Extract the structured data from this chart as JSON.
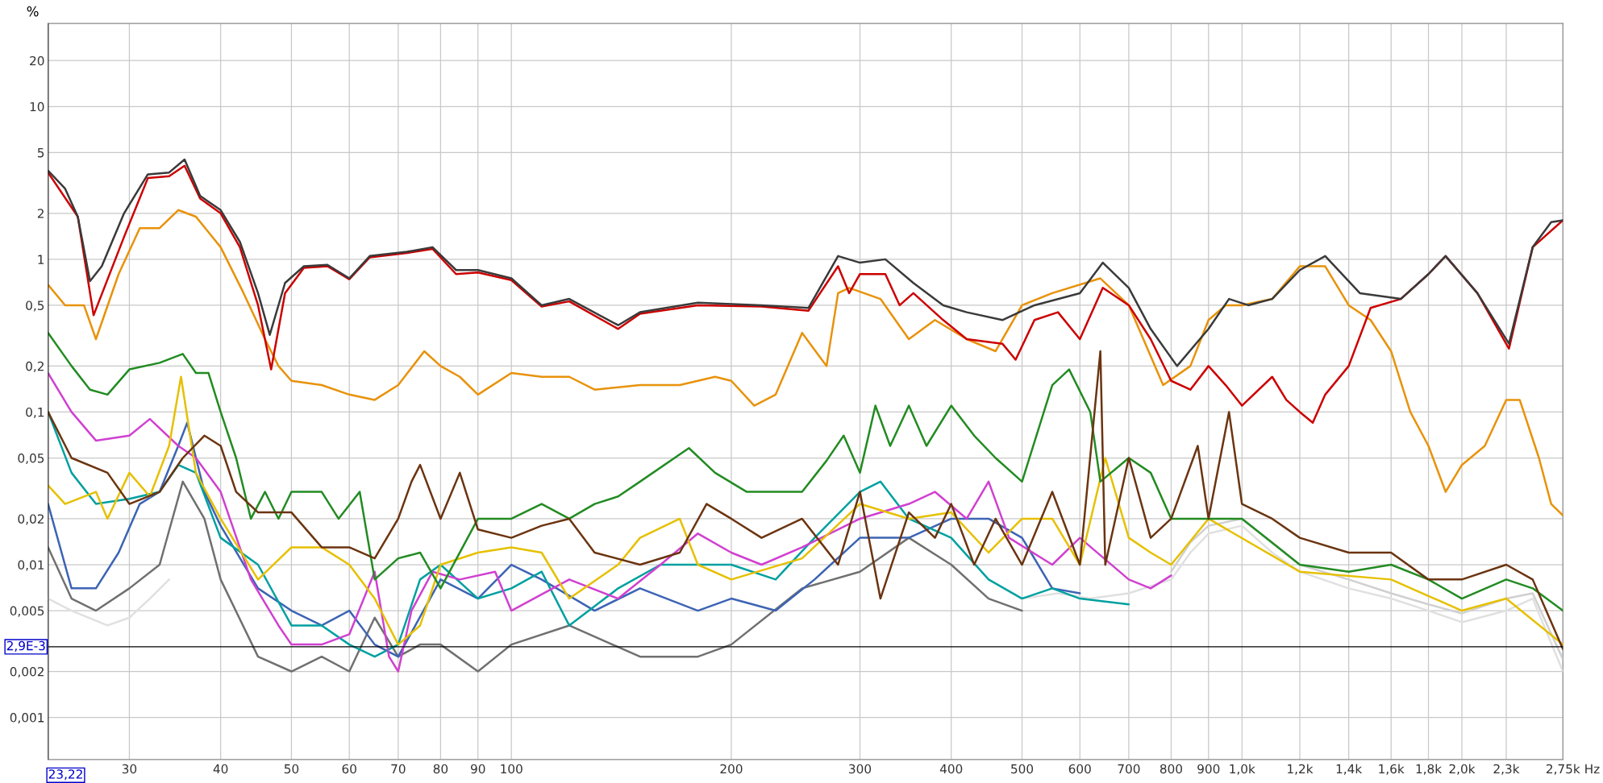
{
  "chart_data": {
    "type": "line",
    "ylabel": "%",
    "log": "xy",
    "grid": true,
    "legend": false,
    "marker": "none",
    "line_style": "solid",
    "xlim": [
      23.22,
      2750
    ],
    "ylim": [
      0.00053,
      35
    ],
    "xticks": [
      30,
      40,
      50,
      60,
      70,
      80,
      90,
      100,
      200,
      300,
      400,
      500,
      600,
      700,
      800,
      900,
      {
        "value": 1000,
        "label": "1,0k"
      },
      {
        "value": 1200,
        "label": "1,2k"
      },
      {
        "value": 1400,
        "label": "1,4k"
      },
      {
        "value": 1600,
        "label": "1,6k"
      },
      {
        "value": 1800,
        "label": "1,8k"
      },
      {
        "value": 2000,
        "label": "2,0k"
      },
      {
        "value": 2300,
        "label": "2,3k"
      },
      {
        "value": 2750,
        "label": "2,75k"
      }
    ],
    "xlabel": "Hz",
    "yticks": [
      20,
      10,
      5,
      2,
      1,
      {
        "value": 0.5,
        "label": "0,5"
      },
      {
        "value": 0.2,
        "label": "0,2"
      },
      {
        "value": 0.1,
        "label": "0,1"
      },
      {
        "value": 0.05,
        "label": "0,05"
      },
      {
        "value": 0.02,
        "label": "0,02"
      },
      {
        "value": 0.01,
        "label": "0,01"
      },
      {
        "value": 0.005,
        "label": "0,005"
      },
      {
        "value": 0.002,
        "label": "0,002"
      },
      {
        "value": 0.001,
        "label": "0,001"
      }
    ],
    "ref_lines": [
      {
        "axis": "x",
        "value": 23.22,
        "label": "23,22",
        "color": "#000000"
      },
      {
        "axis": "y",
        "value": 0.0029,
        "label": "2,9E-3",
        "color": "#000000"
      }
    ],
    "series": [
      {
        "color": "#e0e0e0",
        "x": [
          23.22,
          25,
          28,
          30,
          32,
          34,
          null,
          500,
          560,
          620,
          700,
          800,
          850,
          900,
          1000,
          1100,
          1200,
          1400,
          1600,
          1800,
          2000,
          2300,
          2500,
          2750
        ],
        "values": [
          0.006,
          0.005,
          0.004,
          0.0045,
          0.006,
          0.008,
          null,
          0.006,
          0.0065,
          0.006,
          0.0065,
          0.008,
          0.012,
          0.016,
          0.018,
          0.012,
          0.009,
          0.007,
          0.006,
          0.005,
          0.0042,
          0.005,
          0.006,
          0.002
        ]
      },
      {
        "color": "#d0d0d0",
        "x": [
          800,
          850,
          900,
          1000,
          1100,
          1200,
          1400,
          1600,
          1800,
          2000,
          2300,
          2500,
          2750
        ],
        "values": [
          0.009,
          0.014,
          0.018,
          0.02,
          0.014,
          0.01,
          0.008,
          0.0065,
          0.0055,
          0.0048,
          0.006,
          0.0065,
          0.0024
        ]
      },
      {
        "color": "#707070",
        "x": [
          23.22,
          25,
          27,
          30,
          33,
          35.5,
          38,
          40,
          45,
          50,
          55,
          60,
          65,
          70,
          75,
          80,
          90,
          100,
          120,
          150,
          180,
          200,
          250,
          300,
          350,
          400,
          450,
          500
        ],
        "values": [
          0.013,
          0.006,
          0.005,
          0.007,
          0.01,
          0.035,
          0.02,
          0.008,
          0.0025,
          0.002,
          0.0025,
          0.002,
          0.0045,
          0.0025,
          0.003,
          0.003,
          0.002,
          0.003,
          0.004,
          0.0025,
          0.0025,
          0.003,
          0.007,
          0.009,
          0.015,
          0.01,
          0.006,
          0.005
        ]
      },
      {
        "color": "#3c64b4",
        "x": [
          23.22,
          25,
          27,
          29,
          31,
          33,
          35,
          36,
          38,
          40,
          45,
          50,
          55,
          60,
          65,
          70,
          80,
          90,
          100,
          110,
          130,
          150,
          180,
          200,
          230,
          260,
          300,
          350,
          400,
          450,
          500,
          550,
          600
        ],
        "values": [
          0.025,
          0.007,
          0.007,
          0.012,
          0.025,
          0.03,
          0.06,
          0.085,
          0.03,
          0.018,
          0.007,
          0.005,
          0.004,
          0.005,
          0.003,
          0.0025,
          0.008,
          0.006,
          0.01,
          0.008,
          0.005,
          0.007,
          0.005,
          0.006,
          0.005,
          0.008,
          0.015,
          0.015,
          0.02,
          0.02,
          0.015,
          0.007,
          0.0065
        ]
      },
      {
        "color": "#00a0a0",
        "x": [
          23.22,
          25,
          27,
          30,
          33,
          35,
          37,
          40,
          45,
          50,
          55,
          60,
          65,
          70,
          75,
          80,
          90,
          100,
          110,
          120,
          140,
          160,
          200,
          230,
          260,
          300,
          320,
          350,
          400,
          450,
          500,
          550,
          600,
          700
        ],
        "values": [
          0.1,
          0.04,
          0.025,
          0.027,
          0.03,
          0.045,
          0.04,
          0.015,
          0.01,
          0.004,
          0.004,
          0.003,
          0.0025,
          0.003,
          0.008,
          0.01,
          0.006,
          0.007,
          0.009,
          0.004,
          0.007,
          0.01,
          0.01,
          0.008,
          0.015,
          0.03,
          0.035,
          0.02,
          0.015,
          0.008,
          0.006,
          0.007,
          0.006,
          0.0055
        ]
      },
      {
        "color": "#d040d0",
        "x": [
          23.22,
          25,
          27,
          30,
          32,
          35,
          37,
          40,
          44,
          48,
          50,
          55,
          60,
          65,
          68,
          70,
          73,
          78,
          85,
          95,
          100,
          120,
          140,
          160,
          180,
          200,
          220,
          250,
          300,
          350,
          380,
          420,
          450,
          480,
          550,
          600,
          700,
          750,
          800
        ],
        "values": [
          0.18,
          0.1,
          0.065,
          0.07,
          0.09,
          0.06,
          0.05,
          0.03,
          0.008,
          0.004,
          0.003,
          0.003,
          0.0035,
          0.009,
          0.0025,
          0.002,
          0.005,
          0.009,
          0.008,
          0.009,
          0.005,
          0.008,
          0.006,
          0.01,
          0.016,
          0.012,
          0.01,
          0.013,
          0.02,
          0.025,
          0.03,
          0.02,
          0.035,
          0.015,
          0.01,
          0.015,
          0.008,
          0.007,
          0.0085
        ]
      },
      {
        "color": "#e6c000",
        "x": [
          23.22,
          24.5,
          27,
          28,
          30,
          32,
          34,
          35.3,
          37,
          40,
          45,
          50,
          55,
          60,
          65,
          70,
          75,
          80,
          90,
          100,
          110,
          120,
          140,
          150,
          170,
          180,
          200,
          250,
          300,
          350,
          400,
          450,
          500,
          550,
          600,
          650,
          700,
          750,
          800,
          900,
          1200,
          1600,
          2000,
          2300,
          2750
        ],
        "values": [
          0.033,
          0.025,
          0.03,
          0.02,
          0.04,
          0.028,
          0.06,
          0.17,
          0.04,
          0.02,
          0.008,
          0.013,
          0.013,
          0.01,
          0.006,
          0.003,
          0.004,
          0.01,
          0.012,
          0.013,
          0.012,
          0.006,
          0.01,
          0.015,
          0.02,
          0.01,
          0.008,
          0.011,
          0.025,
          0.02,
          0.022,
          0.012,
          0.02,
          0.02,
          0.01,
          0.05,
          0.015,
          0.012,
          0.01,
          0.02,
          0.009,
          0.008,
          0.005,
          0.006,
          0.003
        ]
      },
      {
        "color": "#228b22",
        "x": [
          23.22,
          25,
          26.5,
          28,
          30,
          33,
          35.5,
          37,
          38.5,
          40,
          42,
          44,
          46,
          48,
          50,
          55,
          58,
          62,
          65,
          70,
          75,
          80,
          90,
          100,
          110,
          120,
          130,
          140,
          150,
          175,
          190,
          210,
          250,
          270,
          285,
          300,
          315,
          330,
          350,
          370,
          400,
          430,
          460,
          500,
          550,
          580,
          620,
          640,
          700,
          750,
          800,
          900,
          1000,
          1200,
          1400,
          1600,
          1800,
          2000,
          2300,
          2500,
          2750
        ],
        "values": [
          0.33,
          0.2,
          0.14,
          0.13,
          0.19,
          0.21,
          0.24,
          0.18,
          0.18,
          0.1,
          0.05,
          0.02,
          0.03,
          0.02,
          0.03,
          0.03,
          0.02,
          0.03,
          0.008,
          0.011,
          0.012,
          0.007,
          0.02,
          0.02,
          0.025,
          0.02,
          0.025,
          0.028,
          0.035,
          0.058,
          0.04,
          0.03,
          0.03,
          0.048,
          0.07,
          0.04,
          0.11,
          0.06,
          0.11,
          0.06,
          0.11,
          0.07,
          0.05,
          0.035,
          0.15,
          0.19,
          0.1,
          0.035,
          0.05,
          0.04,
          0.02,
          0.02,
          0.02,
          0.01,
          0.009,
          0.01,
          0.008,
          0.006,
          0.008,
          0.007,
          0.005
        ]
      },
      {
        "color": "#6b3410",
        "x": [
          23.22,
          25,
          28,
          30,
          33,
          35.5,
          38,
          40,
          42,
          45,
          50,
          55,
          60,
          65,
          70,
          73,
          75,
          80,
          85,
          90,
          100,
          110,
          120,
          130,
          150,
          170,
          185,
          200,
          220,
          250,
          280,
          300,
          320,
          350,
          380,
          400,
          430,
          460,
          500,
          550,
          600,
          640,
          650,
          700,
          750,
          800,
          870,
          900,
          960,
          1000,
          1100,
          1200,
          1400,
          1600,
          1800,
          2000,
          2300,
          2500,
          2750
        ],
        "values": [
          0.1,
          0.05,
          0.04,
          0.025,
          0.03,
          0.05,
          0.07,
          0.06,
          0.03,
          0.022,
          0.022,
          0.013,
          0.013,
          0.011,
          0.02,
          0.035,
          0.045,
          0.02,
          0.04,
          0.017,
          0.015,
          0.018,
          0.02,
          0.012,
          0.01,
          0.012,
          0.025,
          0.02,
          0.015,
          0.02,
          0.01,
          0.03,
          0.006,
          0.022,
          0.015,
          0.025,
          0.01,
          0.02,
          0.01,
          0.03,
          0.01,
          0.25,
          0.01,
          0.05,
          0.015,
          0.02,
          0.06,
          0.02,
          0.1,
          0.025,
          0.02,
          0.015,
          0.012,
          0.012,
          0.008,
          0.008,
          0.01,
          0.008,
          0.0028
        ]
      },
      {
        "color": "#e8920a",
        "x": [
          23.22,
          24.5,
          26,
          27,
          29,
          31,
          33,
          35,
          37,
          40,
          43,
          46,
          48,
          50,
          55,
          60,
          65,
          70,
          76,
          80,
          85,
          90,
          100,
          110,
          120,
          130,
          150,
          170,
          190,
          200,
          215,
          230,
          250,
          270,
          280,
          290,
          320,
          350,
          380,
          420,
          460,
          500,
          550,
          640,
          700,
          780,
          850,
          900,
          950,
          1000,
          1100,
          1200,
          1300,
          1400,
          1500,
          1600,
          1700,
          1800,
          1900,
          2000,
          2150,
          2300,
          2400,
          2550,
          2650,
          2750
        ],
        "values": [
          0.68,
          0.5,
          0.5,
          0.3,
          0.8,
          1.6,
          1.6,
          2.1,
          1.9,
          1.2,
          0.6,
          0.3,
          0.2,
          0.16,
          0.15,
          0.13,
          0.12,
          0.15,
          0.25,
          0.2,
          0.17,
          0.13,
          0.18,
          0.17,
          0.17,
          0.14,
          0.15,
          0.15,
          0.17,
          0.16,
          0.11,
          0.13,
          0.33,
          0.2,
          0.6,
          0.65,
          0.55,
          0.3,
          0.4,
          0.3,
          0.25,
          0.5,
          0.6,
          0.75,
          0.5,
          0.15,
          0.2,
          0.4,
          0.5,
          0.5,
          0.55,
          0.9,
          0.9,
          0.5,
          0.4,
          0.25,
          0.1,
          0.06,
          0.03,
          0.045,
          0.06,
          0.12,
          0.12,
          0.05,
          0.025,
          0.021
        ]
      },
      {
        "color": "#cc0000",
        "x": [
          23.22,
          25.5,
          26.8,
          29.5,
          31.8,
          34,
          35.7,
          37.5,
          40,
          42.5,
          45,
          46.9,
          49,
          52,
          56,
          60,
          64,
          72,
          78,
          84,
          90,
          100,
          110,
          120,
          140,
          150,
          180,
          220,
          255,
          280,
          290,
          300,
          325,
          340,
          355,
          390,
          420,
          470,
          490,
          520,
          560,
          600,
          645,
          700,
          750,
          800,
          850,
          900,
          950,
          1000,
          1100,
          1150,
          1200,
          1250,
          1300,
          1400,
          1500,
          1650,
          1800,
          1900,
          2100,
          2320,
          2500,
          2750
        ],
        "values": [
          3.7,
          1.9,
          0.43,
          1.4,
          3.4,
          3.5,
          4.1,
          2.5,
          2.0,
          1.2,
          0.5,
          0.19,
          0.6,
          0.88,
          0.9,
          0.74,
          1.03,
          1.1,
          1.17,
          0.8,
          0.82,
          0.73,
          0.49,
          0.53,
          0.35,
          0.44,
          0.5,
          0.49,
          0.46,
          0.9,
          0.6,
          0.8,
          0.8,
          0.5,
          0.6,
          0.4,
          0.3,
          0.28,
          0.22,
          0.4,
          0.45,
          0.3,
          0.65,
          0.5,
          0.3,
          0.16,
          0.14,
          0.2,
          0.15,
          0.11,
          0.17,
          0.12,
          0.1,
          0.085,
          0.13,
          0.2,
          0.48,
          0.55,
          0.8,
          1.05,
          0.6,
          0.26,
          1.2,
          1.8
        ]
      },
      {
        "color": "#3a3a3a",
        "x": [
          23.22,
          24.5,
          25.5,
          26.5,
          27.5,
          29.5,
          31.8,
          34,
          35.7,
          37.5,
          40,
          42.5,
          45,
          46.7,
          49,
          52,
          56,
          60,
          64,
          72,
          78,
          84,
          90,
          100,
          110,
          120,
          140,
          150,
          180,
          220,
          255,
          280,
          300,
          325,
          355,
          390,
          420,
          470,
          520,
          600,
          645,
          700,
          750,
          815,
          900,
          960,
          1020,
          1100,
          1200,
          1300,
          1450,
          1650,
          1800,
          1900,
          2100,
          2320,
          2500,
          2650,
          2750
        ],
        "values": [
          3.8,
          2.9,
          1.9,
          0.72,
          0.9,
          2.0,
          3.6,
          3.7,
          4.5,
          2.6,
          2.1,
          1.3,
          0.6,
          0.32,
          0.7,
          0.9,
          0.92,
          0.75,
          1.05,
          1.12,
          1.2,
          0.85,
          0.85,
          0.75,
          0.5,
          0.55,
          0.37,
          0.45,
          0.52,
          0.5,
          0.48,
          1.05,
          0.95,
          1.0,
          0.7,
          0.5,
          0.45,
          0.4,
          0.5,
          0.6,
          0.95,
          0.65,
          0.35,
          0.2,
          0.35,
          0.55,
          0.5,
          0.55,
          0.85,
          1.05,
          0.6,
          0.55,
          0.8,
          1.05,
          0.6,
          0.28,
          1.2,
          1.75,
          1.8
        ]
      }
    ]
  }
}
